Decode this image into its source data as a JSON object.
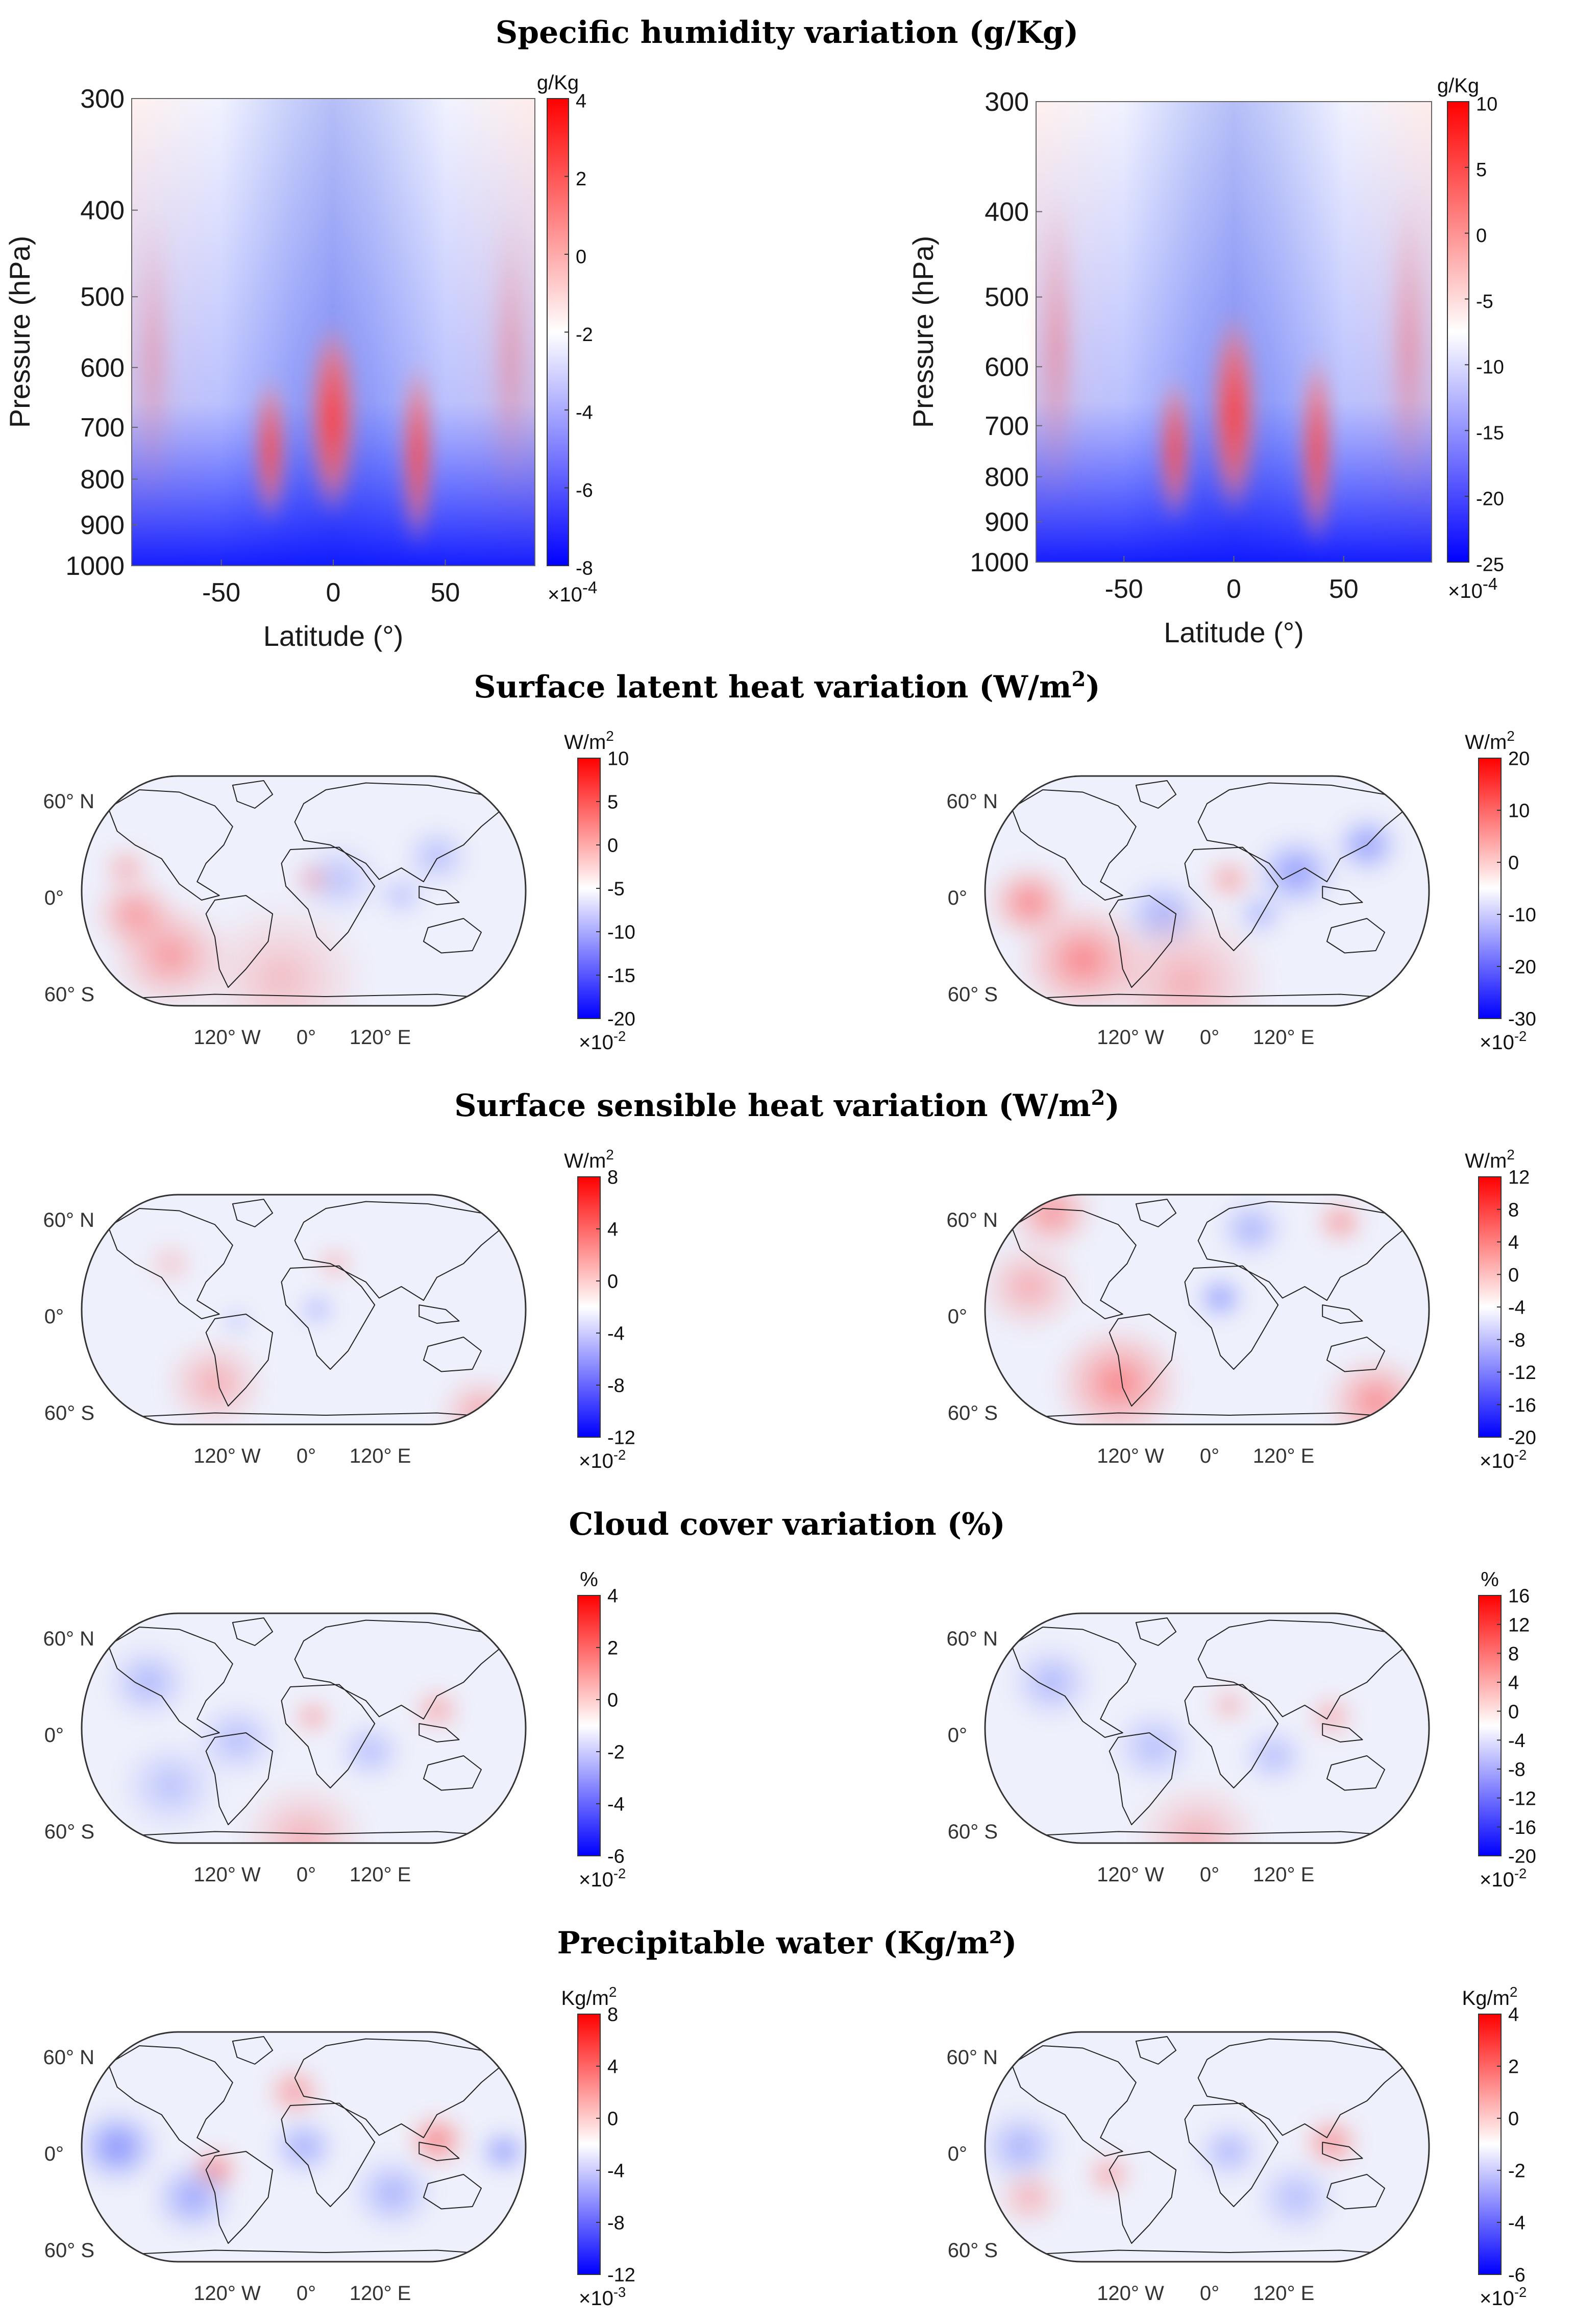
{
  "colors": {
    "red": "#ff0000",
    "white": "#ffffff",
    "blue": "#0000ff",
    "outline": "#222222"
  },
  "sections": [
    {
      "title": "Specific humidity variation (g/Kg)"
    },
    {
      "title": "Surface latent heat variation (W/m",
      "sup": "2",
      "close": ")"
    },
    {
      "title": "Surface sensible heat variation (W/m",
      "sup": "2",
      "close": ")"
    },
    {
      "title": "Cloud cover variation (%)"
    },
    {
      "title": "Precipitable water (Kg/m²)"
    }
  ],
  "map_labels": {
    "lat_north": "60° N",
    "lat_equator": "0°",
    "lat_south": "60° S",
    "lon_west": "120° W",
    "lon_zero": "0°",
    "lon_east": "120° E"
  },
  "chart_data": [
    {
      "type": "heatmap",
      "title": "Specific humidity variation (g/Kg)",
      "panel": "left",
      "xlabel": "Latitude (°)",
      "ylabel": "Pressure (hPa)",
      "xticks": [
        "-50",
        "0",
        "50"
      ],
      "xtick_values": [
        -50,
        0,
        50
      ],
      "xlim": [
        -90,
        90
      ],
      "yticks": [
        "300",
        "400",
        "500",
        "600",
        "700",
        "800",
        "900",
        "1000"
      ],
      "ytick_values": [
        300,
        400,
        500,
        600,
        700,
        800,
        900,
        1000
      ],
      "ylim": [
        300,
        1000
      ],
      "colorbar": {
        "unit": "g/Kg",
        "ticks": [
          "4",
          "2",
          "0",
          "-2",
          "-4",
          "-6",
          "-8"
        ],
        "min": -8,
        "max": 4,
        "multiplier": "×10",
        "exponent": "-4"
      }
    },
    {
      "type": "heatmap",
      "title": "Specific humidity variation (g/Kg)",
      "panel": "right",
      "xlabel": "Latitude (°)",
      "ylabel": "Pressure (hPa)",
      "xticks": [
        "-50",
        "0",
        "50"
      ],
      "xtick_values": [
        -50,
        0,
        50
      ],
      "xlim": [
        -90,
        90
      ],
      "yticks": [
        "300",
        "400",
        "500",
        "600",
        "700",
        "800",
        "900",
        "1000"
      ],
      "ytick_values": [
        300,
        400,
        500,
        600,
        700,
        800,
        900,
        1000
      ],
      "ylim": [
        300,
        1000
      ],
      "colorbar": {
        "unit": "g/Kg",
        "ticks": [
          "10",
          "5",
          "0",
          "-5",
          "-10",
          "-15",
          "-20",
          "-25"
        ],
        "min": -25,
        "max": 10,
        "multiplier": "×10",
        "exponent": "-4"
      }
    },
    {
      "type": "heatmap",
      "title": "Surface latent heat variation (W/m²)",
      "panel": "left",
      "colorbar": {
        "unit": "W/m",
        "unit_sup": "2",
        "ticks": [
          "10",
          "5",
          "0",
          "-5",
          "-10",
          "-15",
          "-20"
        ],
        "min": -20,
        "max": 10,
        "multiplier": "×10",
        "exponent": "-2"
      }
    },
    {
      "type": "heatmap",
      "title": "Surface latent heat variation (W/m²)",
      "panel": "right",
      "colorbar": {
        "unit": "W/m",
        "unit_sup": "2",
        "ticks": [
          "20",
          "10",
          "0",
          "-10",
          "-20",
          "-30"
        ],
        "min": -30,
        "max": 20,
        "multiplier": "×10",
        "exponent": "-2"
      }
    },
    {
      "type": "heatmap",
      "title": "Surface sensible heat variation (W/m²)",
      "panel": "left",
      "colorbar": {
        "unit": "W/m",
        "unit_sup": "2",
        "ticks": [
          "8",
          "4",
          "0",
          "-4",
          "-8",
          "-12"
        ],
        "min": -12,
        "max": 8,
        "multiplier": "×10",
        "exponent": "-2"
      }
    },
    {
      "type": "heatmap",
      "title": "Surface sensible heat variation (W/m²)",
      "panel": "right",
      "colorbar": {
        "unit": "W/m",
        "unit_sup": "2",
        "ticks": [
          "12",
          "8",
          "4",
          "0",
          "-4",
          "-8",
          "-12",
          "-16",
          "-20"
        ],
        "min": -20,
        "max": 12,
        "multiplier": "×10",
        "exponent": "-2"
      }
    },
    {
      "type": "heatmap",
      "title": "Cloud cover variation (%)",
      "panel": "left",
      "colorbar": {
        "unit": "%",
        "ticks": [
          "4",
          "2",
          "0",
          "-2",
          "-4",
          "-6"
        ],
        "min": -6,
        "max": 4,
        "multiplier": "×10",
        "exponent": "-2"
      }
    },
    {
      "type": "heatmap",
      "title": "Cloud cover variation (%)",
      "panel": "right",
      "colorbar": {
        "unit": "%",
        "ticks": [
          "16",
          "12",
          "8",
          "4",
          "0",
          "-4",
          "-8",
          "-12",
          "-16",
          "-20"
        ],
        "min": -20,
        "max": 16,
        "multiplier": "×10",
        "exponent": "-2"
      }
    },
    {
      "type": "heatmap",
      "title": "Precipitable water (Kg/m²)",
      "panel": "left",
      "colorbar": {
        "unit": "Kg/m",
        "unit_sup": "2",
        "ticks": [
          "8",
          "4",
          "0",
          "-4",
          "-8",
          "-12"
        ],
        "min": -12,
        "max": 8,
        "multiplier": "×10",
        "exponent": "-3"
      }
    },
    {
      "type": "heatmap",
      "title": "Precipitable water (Kg/m²)",
      "panel": "right",
      "colorbar": {
        "unit": "Kg/m",
        "unit_sup": "2",
        "ticks": [
          "4",
          "2",
          "0",
          "-2",
          "-4",
          "-6"
        ],
        "min": -6,
        "max": 4,
        "multiplier": "×10",
        "exponent": "-2"
      }
    }
  ]
}
